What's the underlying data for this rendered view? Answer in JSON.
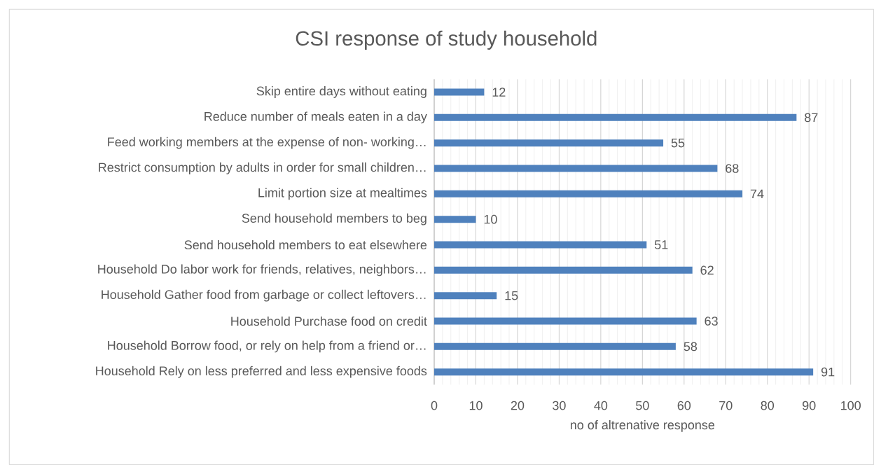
{
  "chart_data": {
    "type": "bar",
    "orientation": "horizontal",
    "title": "CSI response of study household",
    "xlabel": "no of  altrenative response",
    "categories": [
      "Skip entire days without eating",
      "Reduce number of meals eaten in a day",
      "Feed working members at the expense of non- working…",
      "Restrict consumption by adults in order for small children…",
      "Limit portion size at mealtimes",
      "Send household members to beg",
      "Send household members to eat elsewhere",
      "Household Do labor work for friends, relatives, neighbors…",
      "Household Gather food from garbage or collect leftovers…",
      "Household Purchase food on credit",
      "Household Borrow food, or rely on help from a friend or…",
      "Household Rely on less preferred and less expensive foods"
    ],
    "values": [
      12,
      87,
      55,
      68,
      74,
      10,
      51,
      62,
      15,
      63,
      58,
      91
    ],
    "color": "#4f81bd",
    "xlim": [
      0,
      100
    ],
    "xticks": [
      0,
      10,
      20,
      30,
      40,
      50,
      60,
      70,
      80,
      90,
      100
    ],
    "grid": "x",
    "data_labels": true
  }
}
